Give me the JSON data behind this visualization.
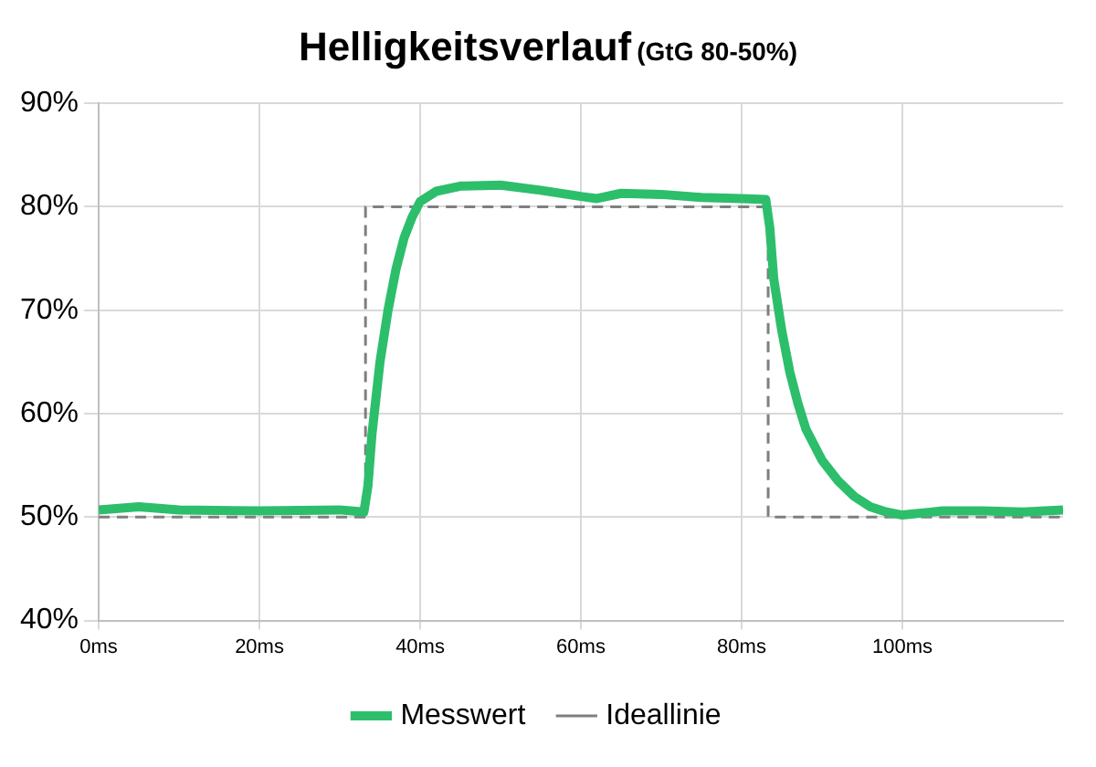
{
  "chart_data": {
    "type": "line",
    "title": "Helligkeitsverlauf",
    "subtitle": "(GtG 80-50%)",
    "xlim": [
      0,
      120
    ],
    "xticks": [
      {
        "value": 0,
        "label": "0ms"
      },
      {
        "value": 20,
        "label": "20ms"
      },
      {
        "value": 40,
        "label": "40ms"
      },
      {
        "value": 60,
        "label": "60ms"
      },
      {
        "value": 80,
        "label": "80ms"
      },
      {
        "value": 100,
        "label": "100ms"
      }
    ],
    "ylim": [
      40,
      90
    ],
    "yticks": [
      {
        "value": 40,
        "label": "40%"
      },
      {
        "value": 50,
        "label": "50%"
      },
      {
        "value": 60,
        "label": "60%"
      },
      {
        "value": 70,
        "label": "70%"
      },
      {
        "value": 80,
        "label": "80%"
      },
      {
        "value": 90,
        "label": "90%"
      }
    ],
    "grid": true,
    "legend": "bottom",
    "marker": "none",
    "series": [
      {
        "name": "Messwert",
        "color": "#2dbe6c",
        "line_style": "solid",
        "x": [
          0,
          5,
          10,
          20,
          30,
          33,
          33.5,
          34,
          35,
          36,
          37,
          38,
          39,
          40,
          42,
          45,
          50,
          55,
          60,
          62,
          65,
          70,
          75,
          80,
          83,
          83.5,
          84,
          85,
          86,
          87,
          88,
          90,
          92,
          94,
          96,
          98,
          100,
          105,
          110,
          115,
          120
        ],
        "values": [
          50.7,
          51,
          50.7,
          50.6,
          50.7,
          50.5,
          53,
          58,
          65,
          70,
          74,
          77,
          79,
          80.5,
          81.5,
          82,
          82.1,
          81.6,
          81,
          80.8,
          81.3,
          81.2,
          80.9,
          80.8,
          80.7,
          78,
          73,
          68,
          64,
          61,
          58.5,
          55.5,
          53.5,
          52,
          51,
          50.5,
          50.2,
          50.6,
          50.6,
          50.5,
          50.7
        ]
      },
      {
        "name": "Ideallinie",
        "color": "#7f7f7f",
        "line_style": "dashed",
        "x": [
          0,
          33.2,
          33.2,
          83.3,
          83.3,
          120
        ],
        "values": [
          50,
          50,
          80,
          80,
          50,
          50
        ]
      }
    ]
  }
}
